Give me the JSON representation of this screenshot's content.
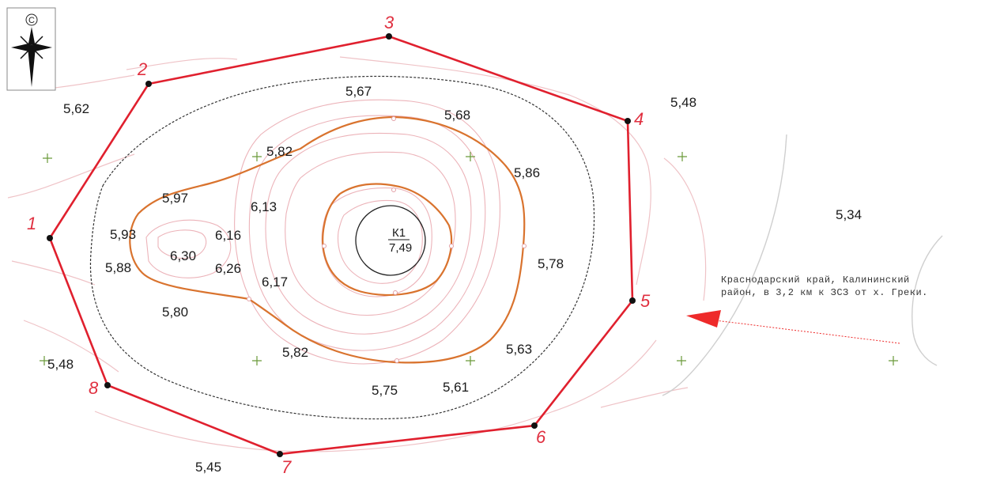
{
  "compass": {
    "letter": "С",
    "icon": "north-arrow-icon"
  },
  "colors": {
    "boundary": "#e0202e",
    "contour": "#e9a7ad",
    "main_contour": "#d9732e",
    "outline": "#222222",
    "grid_cross": "#6a9a3a",
    "arrow": "#ee2a2a"
  },
  "vertices": [
    {
      "label": "1"
    },
    {
      "label": "2"
    },
    {
      "label": "3"
    },
    {
      "label": "4"
    },
    {
      "label": "5"
    },
    {
      "label": "6"
    },
    {
      "label": "7"
    },
    {
      "label": "8"
    }
  ],
  "elevations": [
    "5,62",
    "5,67",
    "5,68",
    "5,48",
    "5,82",
    "5,86",
    "5,97",
    "6,13",
    "5,34",
    "5,93",
    "6,16",
    "6,30",
    "6,26",
    "5,88",
    "5,78",
    "6,17",
    "5,80",
    "5,82",
    "5,63",
    "5,48",
    "5,75",
    "5,61",
    "5,45"
  ],
  "well": {
    "name": "К1",
    "elevation": "7,49"
  },
  "location_note": {
    "line1": "Краснодарский край, Калининский",
    "line2": "район, в 3,2 км к ЗСЗ от х. Греки."
  }
}
